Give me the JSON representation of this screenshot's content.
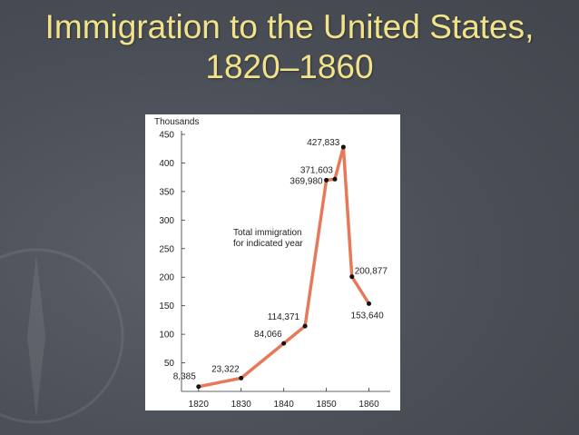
{
  "slide": {
    "title_line1": "Immigration to the United States,",
    "title_line2": "1820–1860"
  },
  "colors": {
    "background": "#4a4e56",
    "title": "#f2e28a",
    "line": "#e57a5a",
    "marker": "#111111",
    "panel": "#ffffff"
  },
  "chart_data": {
    "type": "line",
    "title": "",
    "xlabel": "",
    "ylabel": "Thousands",
    "xlim": [
      1816,
      1865
    ],
    "ylim": [
      0,
      450
    ],
    "x_ticks": [
      1820,
      1830,
      1840,
      1850,
      1860
    ],
    "y_ticks": [
      50,
      100,
      150,
      200,
      250,
      300,
      350,
      400,
      450
    ],
    "annotation": [
      "Total immigration",
      "for indicated year"
    ],
    "series": [
      {
        "x": [
          1820,
          1830,
          1840,
          1845,
          1850,
          1852,
          1854,
          1856,
          1860
        ],
        "y": [
          8.385,
          23.322,
          84.066,
          114.371,
          369.98,
          371.603,
          427.833,
          200.877,
          153.64
        ],
        "labels": [
          "8,385",
          "23,322",
          "84,066",
          "114,371",
          "369,980",
          "371,603",
          "427,833",
          "200,877",
          "153,640"
        ]
      }
    ]
  }
}
